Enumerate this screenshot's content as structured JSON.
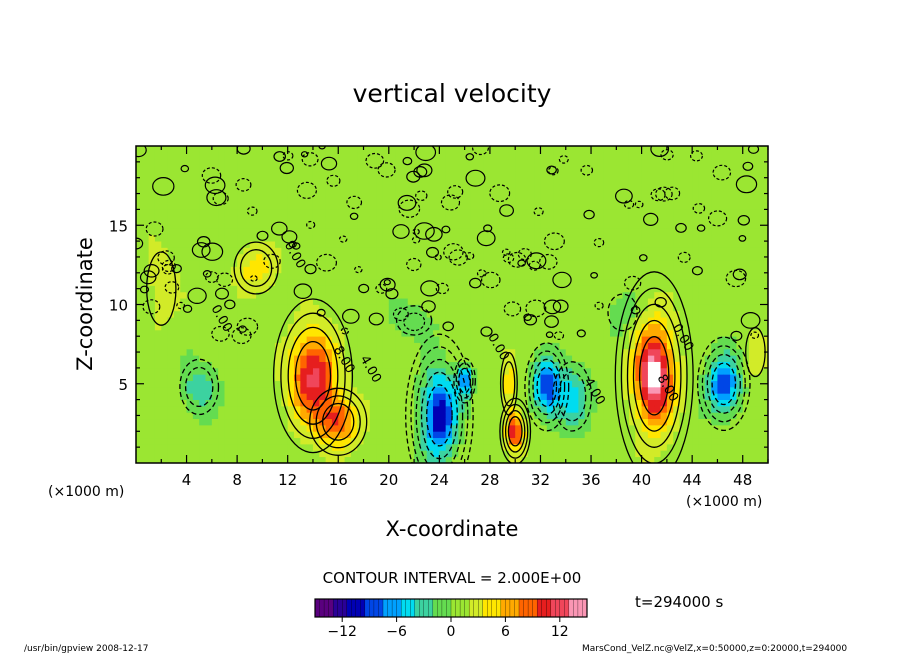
{
  "chart_data": {
    "type": "heatmap",
    "title": "vertical velocity",
    "xlabel": "X-coordinate",
    "ylabel": "Z-coordinate",
    "x_unit_left": "(×1000 m)",
    "x_unit_right": "(×1000 m)",
    "xlim": [
      0,
      50
    ],
    "ylim": [
      0,
      20
    ],
    "xticks": [
      4,
      8,
      12,
      16,
      20,
      24,
      28,
      32,
      36,
      40,
      44,
      48
    ],
    "yticks": [
      5,
      10,
      15
    ],
    "contour_interval_text": "CONTOUR INTERVAL = 2.000E+00",
    "time_text": "t=294000 s",
    "colorbar": {
      "min": -15,
      "max": 15,
      "ticks": [
        -12,
        -6,
        0,
        6,
        12
      ],
      "colors": [
        "#5a007f",
        "#2a0096",
        "#0000b4",
        "#0046e6",
        "#00a0ff",
        "#00dcf0",
        "#3cd2a0",
        "#64dc50",
        "#9be632",
        "#d2eb28",
        "#ffe600",
        "#ffaa00",
        "#ff6400",
        "#e61e1e",
        "#f0465a",
        "#fa96b4"
      ]
    },
    "contour_labels": [
      {
        "x": 6.5,
        "z": 9.0,
        "text": "0.00"
      },
      {
        "x": 12.3,
        "z": 13.0,
        "text": "0.00"
      },
      {
        "x": 16.2,
        "z": 6.4,
        "text": "8.00"
      },
      {
        "x": 18.3,
        "z": 5.8,
        "text": "4.00"
      },
      {
        "x": 41.8,
        "z": 4.6,
        "text": "8.00"
      },
      {
        "x": 36.0,
        "z": 4.4,
        "text": "4.00"
      },
      {
        "x": 43.0,
        "z": 7.8,
        "text": "0.00"
      },
      {
        "x": 28.4,
        "z": 7.2,
        "text": "0.00"
      }
    ],
    "features": [
      {
        "x": 14.0,
        "z": 5.5,
        "sx": 1.8,
        "sz": 2.8,
        "amp": 11
      },
      {
        "x": 16.0,
        "z": 2.6,
        "sx": 1.6,
        "sz": 1.5,
        "amp": 8
      },
      {
        "x": 41.0,
        "z": 5.5,
        "sx": 1.5,
        "sz": 3.2,
        "amp": 14
      },
      {
        "x": 30.0,
        "z": 2.0,
        "sx": 0.7,
        "sz": 1.2,
        "amp": 10
      },
      {
        "x": 29.5,
        "z": 5.0,
        "sx": 0.6,
        "sz": 1.8,
        "amp": 4
      },
      {
        "x": 24.0,
        "z": 3.0,
        "sx": 1.3,
        "sz": 2.5,
        "amp": -12
      },
      {
        "x": 26.0,
        "z": 5.2,
        "sx": 0.6,
        "sz": 1.0,
        "amp": -8
      },
      {
        "x": 32.5,
        "z": 4.8,
        "sx": 1.0,
        "sz": 1.6,
        "amp": -10
      },
      {
        "x": 34.5,
        "z": 4.2,
        "sx": 1.4,
        "sz": 2.0,
        "amp": -5
      },
      {
        "x": 46.5,
        "z": 5.0,
        "sx": 1.2,
        "sz": 1.7,
        "amp": -10
      },
      {
        "x": 5.0,
        "z": 4.8,
        "sx": 1.4,
        "sz": 1.6,
        "amp": -4
      },
      {
        "x": 9.5,
        "z": 12.3,
        "sx": 1.6,
        "sz": 1.5,
        "amp": 4
      },
      {
        "x": 2.0,
        "z": 11.0,
        "sx": 1.5,
        "sz": 3.0,
        "amp": 2
      },
      {
        "x": 22.0,
        "z": 9.0,
        "sx": 1.8,
        "sz": 1.2,
        "amp": -2
      },
      {
        "x": 38.5,
        "z": 9.5,
        "sx": 1.5,
        "sz": 1.5,
        "amp": -2
      },
      {
        "x": 49.0,
        "z": 7.0,
        "sx": 1.0,
        "sz": 2.0,
        "amp": 2
      }
    ]
  },
  "footer": {
    "left": "/usr/bin/gpview  2008-12-17",
    "right": "MarsCond_VelZ.nc@VelZ,x=0:50000,z=0:20000,t=294000"
  }
}
